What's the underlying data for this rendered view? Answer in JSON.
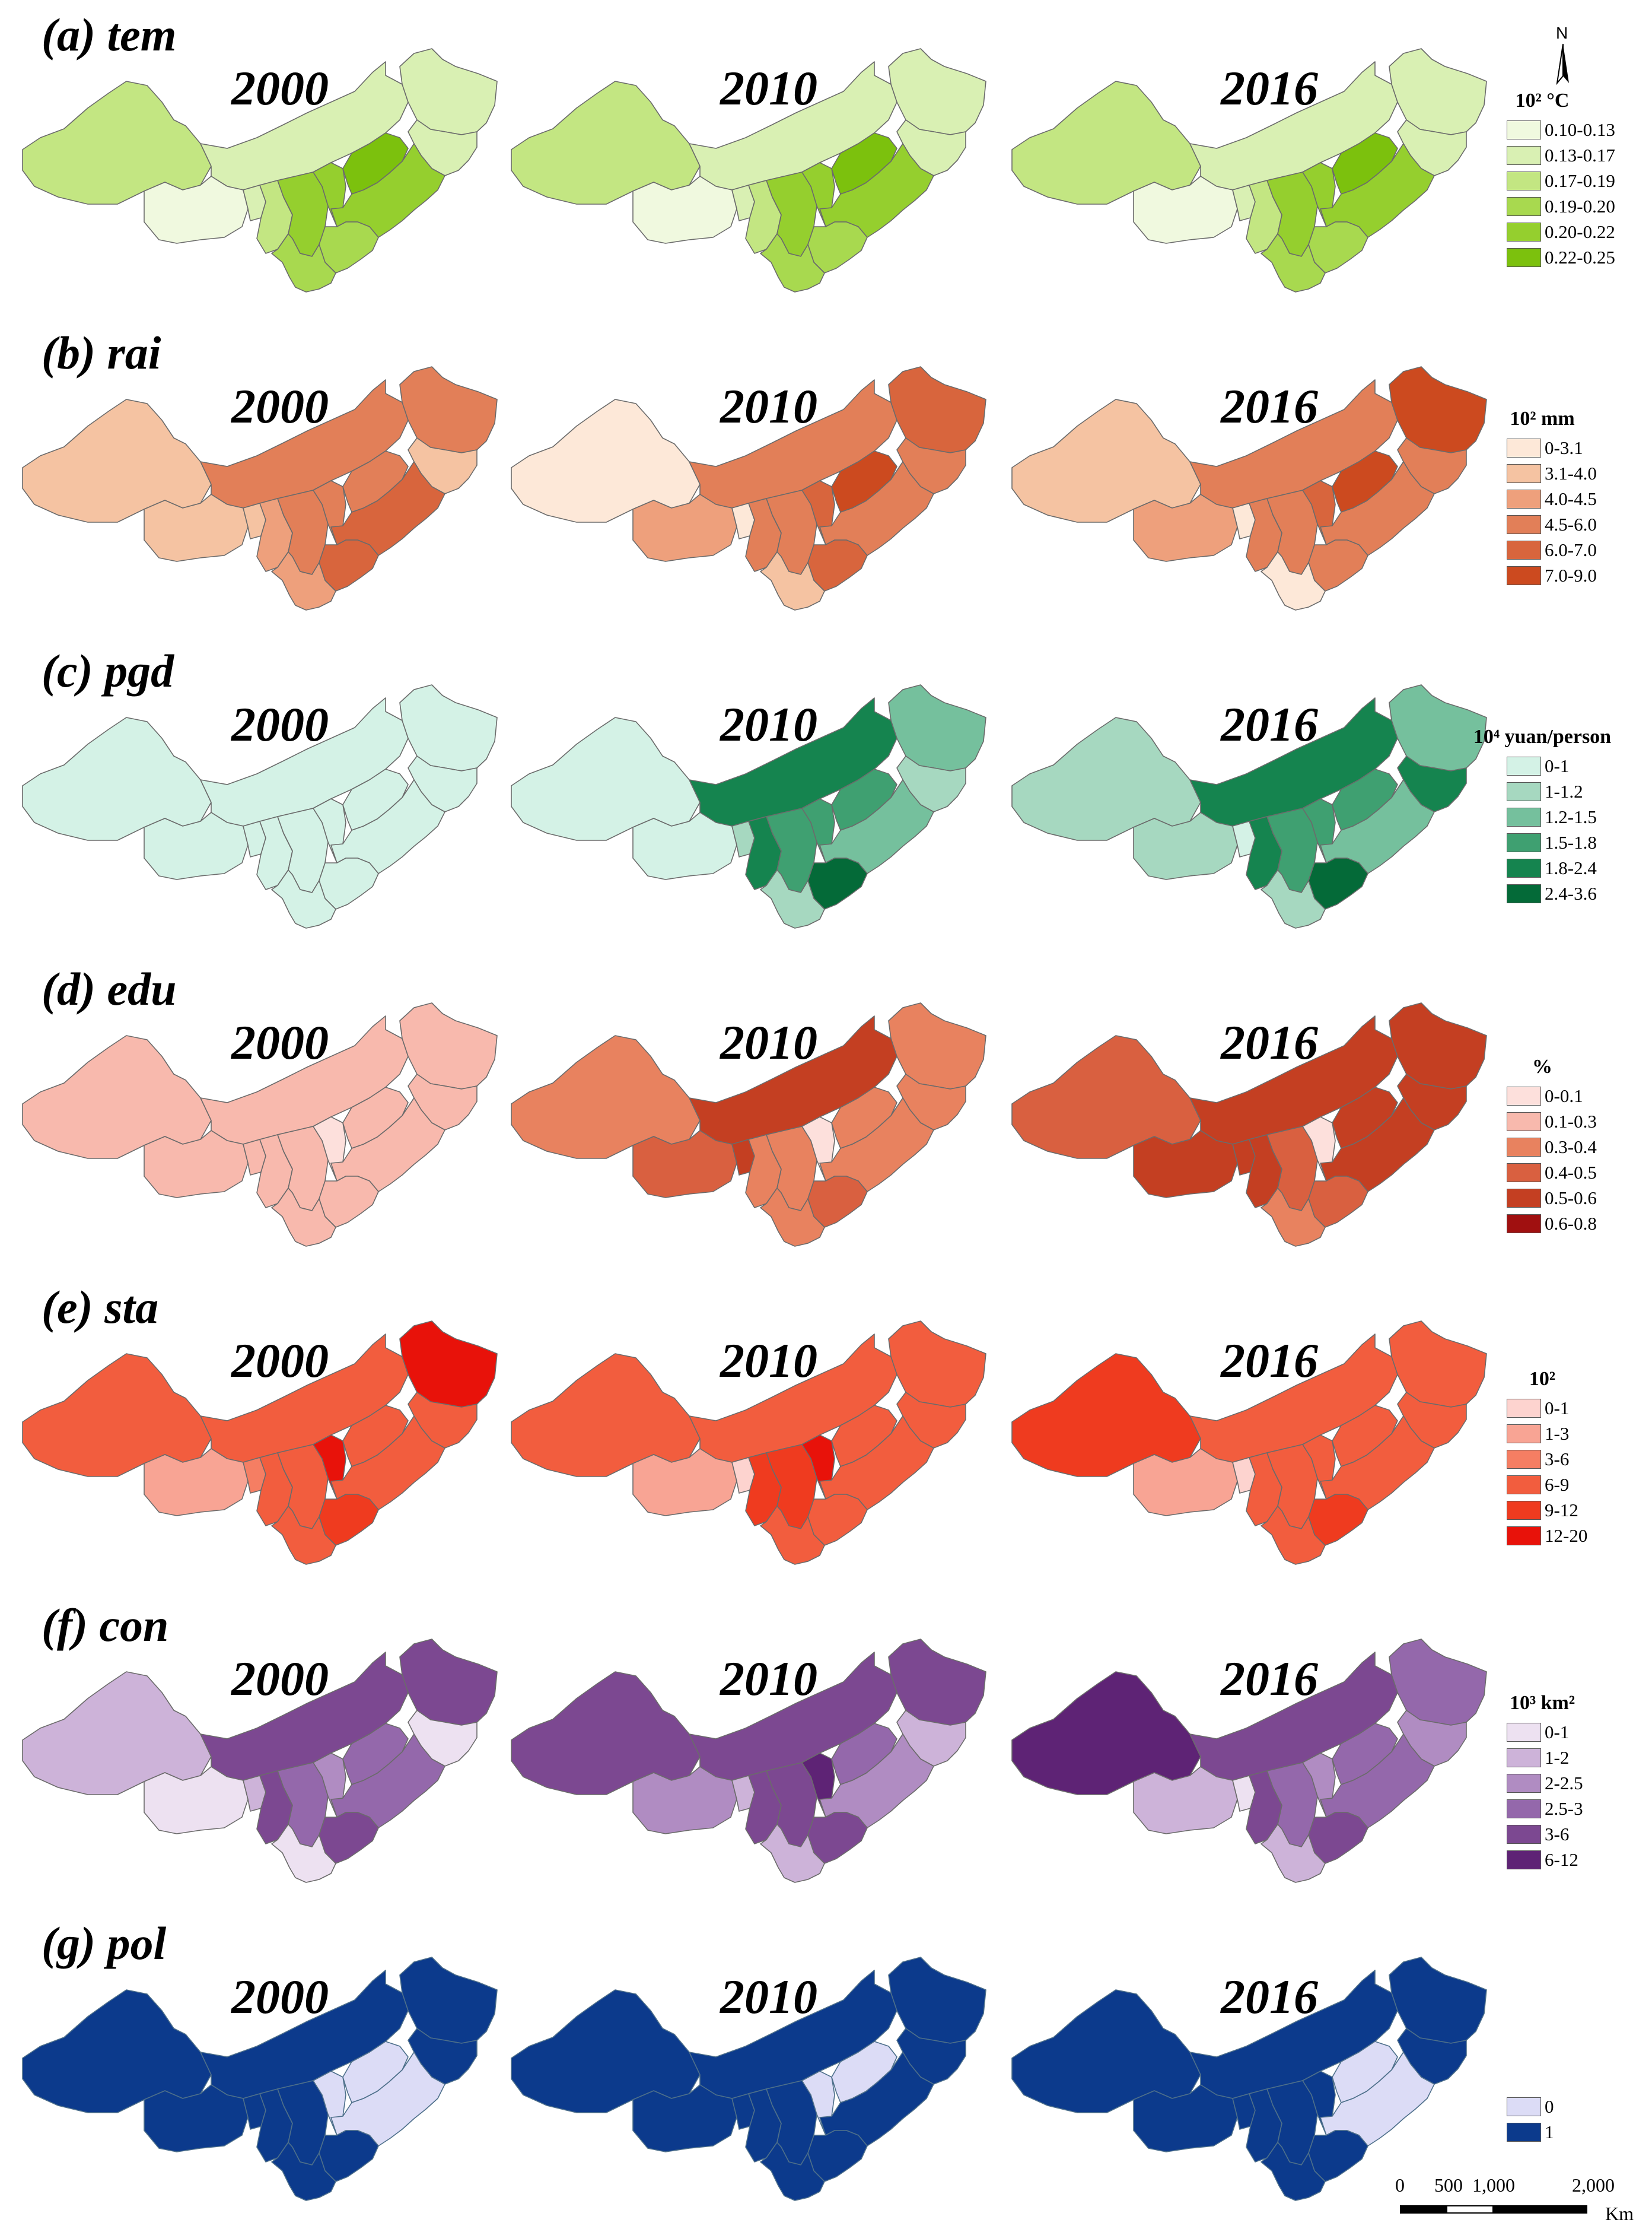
{
  "figure": {
    "years": [
      "2000",
      "2010",
      "2016"
    ],
    "north_label": "N",
    "scale": {
      "ticks": [
        "0",
        "500",
        "1,000",
        "2,000"
      ],
      "unit": "Km"
    },
    "panels": [
      {
        "title": "(a) tem",
        "legend_title": "10² °C",
        "classes": [
          {
            "label": "0.10-0.13",
            "color": "#f0f9df"
          },
          {
            "label": "0.13-0.17",
            "color": "#d9f0b3"
          },
          {
            "label": "0.17-0.19",
            "color": "#c3e682"
          },
          {
            "label": "0.19-0.20",
            "color": "#a8d94f"
          },
          {
            "label": "0.20-0.22",
            "color": "#95cf2e"
          },
          {
            "label": "0.22-0.25",
            "color": "#7cc10d"
          }
        ],
        "maps": [
          [
            2,
            1,
            1,
            1,
            0,
            1,
            2,
            4,
            4,
            5,
            4,
            3,
            3
          ],
          [
            2,
            1,
            1,
            1,
            0,
            1,
            2,
            4,
            4,
            5,
            4,
            3,
            3
          ],
          [
            2,
            1,
            1,
            1,
            0,
            1,
            2,
            4,
            4,
            5,
            4,
            3,
            3
          ]
        ]
      },
      {
        "title": "(b) rai",
        "legend_title": "10² mm",
        "classes": [
          {
            "label": "0-3.1",
            "color": "#fde8d8"
          },
          {
            "label": "3.1-4.0",
            "color": "#f5c3a2"
          },
          {
            "label": "4.0-4.5",
            "color": "#eea07c"
          },
          {
            "label": "4.5-6.0",
            "color": "#e27f58"
          },
          {
            "label": "6.0-7.0",
            "color": "#d8653d"
          },
          {
            "label": "7.0-9.0",
            "color": "#cc4a1f"
          }
        ],
        "maps": [
          [
            1,
            3,
            3,
            1,
            1,
            1,
            2,
            3,
            3,
            3,
            4,
            4,
            2
          ],
          [
            0,
            3,
            4,
            3,
            2,
            0,
            3,
            3,
            4,
            5,
            3,
            4,
            1
          ],
          [
            1,
            3,
            5,
            3,
            2,
            0,
            3,
            3,
            4,
            5,
            3,
            3,
            0
          ]
        ]
      },
      {
        "title": "(c) pgd",
        "legend_title": "10⁴ yuan/person",
        "classes": [
          {
            "label": "0-1",
            "color": "#d4f2e6"
          },
          {
            "label": "1-1.2",
            "color": "#a6d8c0"
          },
          {
            "label": "1.2-1.5",
            "color": "#75c09d"
          },
          {
            "label": "1.5-1.8",
            "color": "#3fa071"
          },
          {
            "label": "1.8-2.4",
            "color": "#15844f"
          },
          {
            "label": "2.4-3.6",
            "color": "#046a38"
          }
        ],
        "maps": [
          [
            0,
            0,
            0,
            0,
            0,
            0,
            0,
            0,
            0,
            0,
            0,
            0,
            0
          ],
          [
            0,
            4,
            2,
            1,
            0,
            1,
            4,
            3,
            3,
            3,
            2,
            5,
            1
          ],
          [
            1,
            4,
            2,
            4,
            1,
            0,
            4,
            3,
            3,
            3,
            2,
            5,
            1
          ]
        ]
      },
      {
        "title": "(d) edu",
        "legend_title": "%",
        "classes": [
          {
            "label": "0-0.1",
            "color": "#fde0dc"
          },
          {
            "label": "0.1-0.3",
            "color": "#f8b9ad"
          },
          {
            "label": "0.3-0.4",
            "color": "#e8825f"
          },
          {
            "label": "0.4-0.5",
            "color": "#d96040"
          },
          {
            "label": "0.5-0.6",
            "color": "#c43f22"
          },
          {
            "label": "0.6-0.8",
            "color": "#a01010"
          }
        ],
        "maps": [
          [
            1,
            1,
            1,
            1,
            1,
            1,
            1,
            1,
            0,
            1,
            1,
            1,
            1
          ],
          [
            2,
            4,
            2,
            2,
            3,
            4,
            2,
            2,
            0,
            2,
            2,
            3,
            2
          ],
          [
            3,
            4,
            4,
            4,
            4,
            4,
            4,
            3,
            0,
            4,
            4,
            3,
            2
          ]
        ]
      },
      {
        "title": "(e) sta",
        "legend_title": "10²",
        "classes": [
          {
            "label": "0-1",
            "color": "#fdd3cf"
          },
          {
            "label": "1-3",
            "color": "#f8a494"
          },
          {
            "label": "3-6",
            "color": "#f57e63"
          },
          {
            "label": "6-9",
            "color": "#f25d3e"
          },
          {
            "label": "9-12",
            "color": "#ef3b1f"
          },
          {
            "label": "12-20",
            "color": "#e8120a"
          }
        ],
        "maps": [
          [
            3,
            3,
            5,
            3,
            1,
            2,
            3,
            3,
            5,
            3,
            3,
            4,
            3
          ],
          [
            3,
            3,
            3,
            3,
            1,
            0,
            4,
            4,
            5,
            3,
            3,
            3,
            3
          ],
          [
            4,
            3,
            3,
            3,
            1,
            0,
            3,
            3,
            3,
            3,
            3,
            4,
            3
          ]
        ]
      },
      {
        "title": "(f) con",
        "legend_title": "10³ km²",
        "classes": [
          {
            "label": "0-1",
            "color": "#ede1f1"
          },
          {
            "label": "1-2",
            "color": "#cdb3d9"
          },
          {
            "label": "2-2.5",
            "color": "#b08cc2"
          },
          {
            "label": "2.5-3",
            "color": "#9468ab"
          },
          {
            "label": "3-6",
            "color": "#7c4891"
          },
          {
            "label": "6-12",
            "color": "#5e2375"
          }
        ],
        "maps": [
          [
            1,
            4,
            4,
            0,
            0,
            1,
            4,
            3,
            2,
            3,
            3,
            4,
            0
          ],
          [
            4,
            4,
            4,
            1,
            2,
            1,
            4,
            4,
            5,
            3,
            2,
            4,
            1
          ],
          [
            5,
            4,
            3,
            2,
            1,
            0,
            4,
            3,
            2,
            3,
            3,
            4,
            1
          ]
        ]
      },
      {
        "title": "(g) pol",
        "legend_title": "",
        "classes": [
          {
            "label": "0",
            "color": "#dcdcf6"
          },
          {
            "label": "1",
            "color": "#0c3a8c"
          }
        ],
        "maps": [
          [
            1,
            1,
            1,
            1,
            1,
            1,
            1,
            1,
            0,
            0,
            0,
            1,
            1
          ],
          [
            1,
            1,
            1,
            1,
            1,
            1,
            1,
            1,
            0,
            0,
            1,
            1,
            1
          ],
          [
            1,
            1,
            1,
            1,
            1,
            1,
            1,
            1,
            1,
            0,
            0,
            1,
            1
          ]
        ]
      }
    ]
  }
}
